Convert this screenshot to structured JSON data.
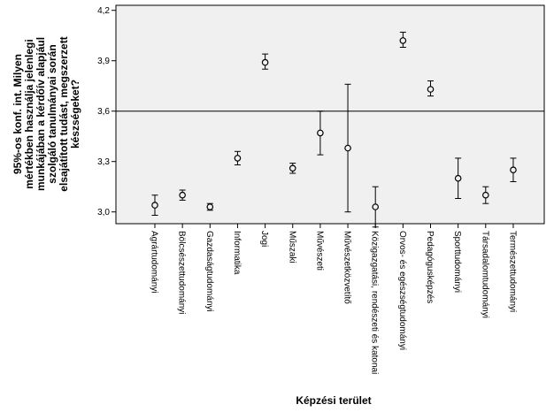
{
  "chart_data": {
    "type": "errorbar",
    "title": "",
    "xlabel": "Képzési terület",
    "ylabel_lines": [
      "95%-os konf. int. Milyen",
      "mértékben használja jelenlegi",
      "munkájában a kérdőív alapjául",
      "szolgáló tanulmányai során",
      "elsajátított tudást, megszerzett",
      "készségeket?"
    ],
    "ylim": [
      2.93,
      4.23
    ],
    "yticks": [
      3.0,
      3.3,
      3.6,
      3.9,
      4.2
    ],
    "ytick_labels": [
      "3,0",
      "3,3",
      "3,6",
      "3,9",
      "4,2"
    ],
    "reference_line": 3.6,
    "categories": [
      "Agrártudományi",
      "Bölcsészettudományi",
      "Gazdaságtudományi",
      "Informatika",
      "Jogi",
      "Műszaki",
      "Művészeti",
      "Művészetközvetítő",
      "Közigazgatási, rendészeti és katonai",
      "Orvos- és egészségtudományi",
      "Pedagógusképzés",
      "Sporttudományi",
      "Társadalomtudományi",
      "Természettudományi"
    ],
    "mean": [
      3.04,
      3.1,
      3.03,
      3.32,
      3.89,
      3.26,
      3.47,
      3.38,
      3.03,
      4.02,
      3.73,
      3.2,
      3.1,
      3.25
    ],
    "lower": [
      2.98,
      3.07,
      3.01,
      3.28,
      3.85,
      3.23,
      3.34,
      3.0,
      2.91,
      3.98,
      3.69,
      3.08,
      3.05,
      3.18
    ],
    "upper": [
      3.1,
      3.13,
      3.05,
      3.36,
      3.94,
      3.29,
      3.6,
      3.76,
      3.15,
      4.07,
      3.78,
      3.32,
      3.15,
      3.32
    ]
  }
}
